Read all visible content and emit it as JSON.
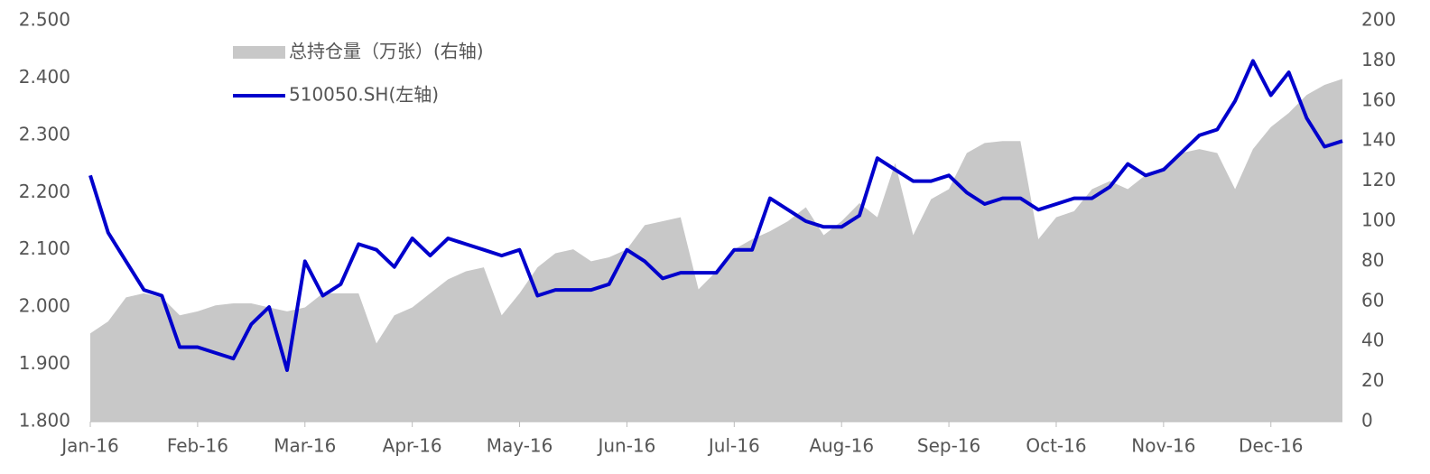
{
  "chart_data": {
    "type": "line",
    "categories": [
      "Jan-16",
      null,
      null,
      null,
      null,
      null,
      "Feb-16",
      null,
      null,
      null,
      null,
      null,
      "Mar-16",
      null,
      null,
      null,
      null,
      null,
      "Apr-16",
      null,
      null,
      null,
      null,
      null,
      "May-16",
      null,
      null,
      null,
      null,
      null,
      "Jun-16",
      null,
      null,
      null,
      null,
      null,
      "Jul-16",
      null,
      null,
      null,
      null,
      null,
      "Aug-16",
      null,
      null,
      null,
      null,
      null,
      "Sep-16",
      null,
      null,
      null,
      null,
      null,
      "Oct-16",
      null,
      null,
      null,
      null,
      null,
      "Nov-16",
      null,
      null,
      null,
      null,
      null,
      "Dec-16",
      null,
      null,
      null,
      null
    ],
    "series": [
      {
        "name": "总持仓量（万张）(右轴)",
        "color": "#c8c8c8",
        "kind": "area",
        "axis": "y2",
        "values": [
          44,
          50,
          62,
          64,
          62,
          53,
          55,
          58,
          59,
          59,
          57,
          55,
          57,
          64,
          64,
          64,
          39,
          53,
          57,
          64,
          71,
          75,
          77,
          53,
          64,
          77,
          84,
          86,
          80,
          82,
          86,
          98,
          100,
          102,
          66,
          75,
          86,
          91,
          95,
          100,
          107,
          93,
          100,
          109,
          102,
          129,
          93,
          111,
          116,
          134,
          139,
          140,
          140,
          91,
          102,
          105,
          116,
          120,
          116,
          123,
          127,
          134,
          136,
          134,
          116,
          136,
          147,
          154,
          163,
          168,
          171
        ]
      },
      {
        "name": "510050.SH(左轴)",
        "color": "#0000cc",
        "kind": "line",
        "values": [
          2.23,
          2.13,
          2.08,
          2.03,
          2.02,
          1.93,
          1.93,
          1.92,
          1.91,
          1.97,
          2.0,
          1.89,
          2.08,
          2.02,
          2.04,
          2.11,
          2.1,
          2.07,
          2.12,
          2.09,
          2.12,
          2.11,
          2.1,
          2.09,
          2.1,
          2.02,
          2.03,
          2.03,
          2.03,
          2.04,
          2.1,
          2.08,
          2.05,
          2.06,
          2.06,
          2.06,
          2.1,
          2.1,
          2.19,
          2.17,
          2.15,
          2.14,
          2.14,
          2.16,
          2.26,
          2.24,
          2.22,
          2.22,
          2.23,
          2.2,
          2.18,
          2.19,
          2.19,
          2.17,
          2.18,
          2.19,
          2.19,
          2.21,
          2.25,
          2.23,
          2.24,
          2.27,
          2.3,
          2.31,
          2.36,
          2.43,
          2.37,
          2.41,
          2.33,
          2.28,
          2.29
        ]
      }
    ],
    "ylim": [
      1.8,
      2.5
    ],
    "yticks": [
      {
        "value": 1.8,
        "label": "1.800"
      },
      {
        "value": 1.9,
        "label": "1.900"
      },
      {
        "value": 2.0,
        "label": "2.000"
      },
      {
        "value": 2.1,
        "label": "2.100"
      },
      {
        "value": 2.2,
        "label": "2.200"
      },
      {
        "value": 2.3,
        "label": "2.300"
      },
      {
        "value": 2.4,
        "label": "2.400"
      },
      {
        "value": 2.5,
        "label": "2.500"
      }
    ],
    "y2lim": [
      0,
      200
    ],
    "y2ticks": [
      0,
      20,
      40,
      60,
      80,
      100,
      120,
      140,
      160,
      180,
      200
    ],
    "legend": "top-left"
  }
}
